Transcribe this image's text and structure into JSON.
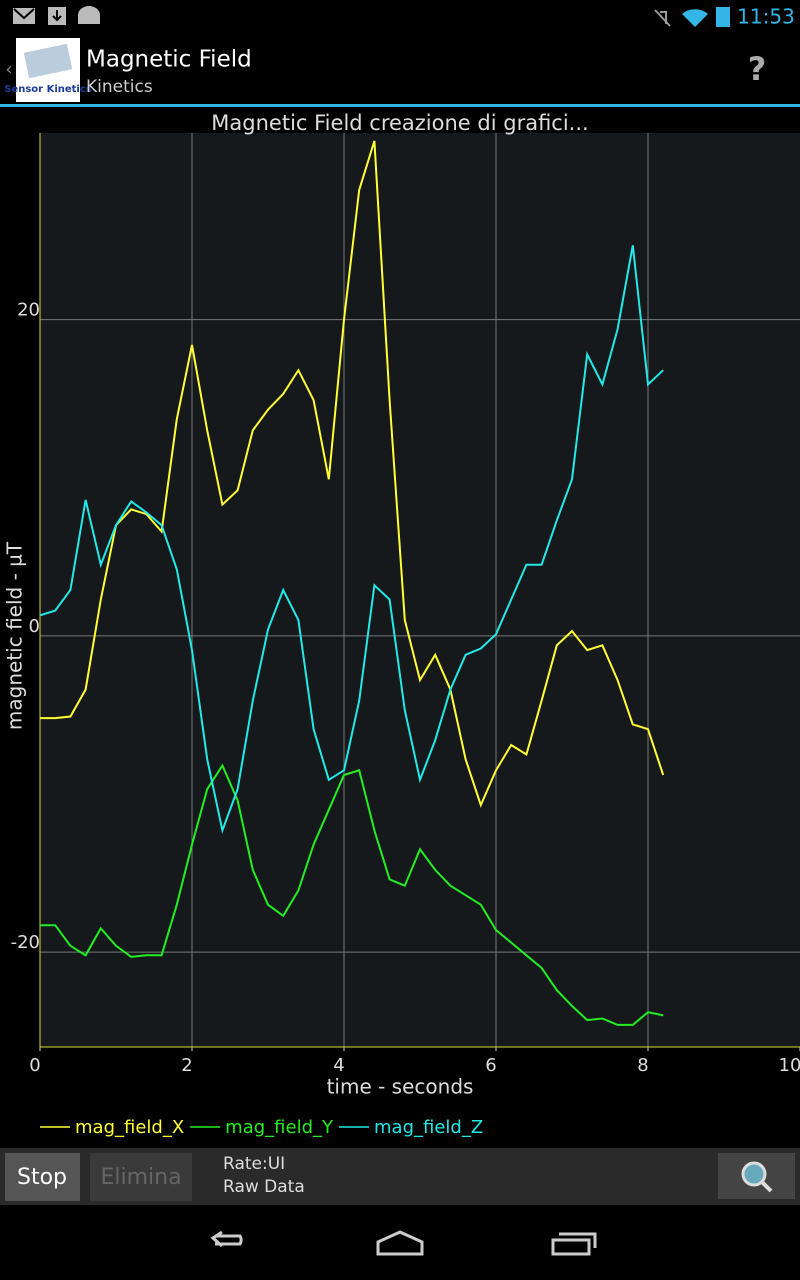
{
  "status_bar": {
    "time": "11:53"
  },
  "app_bar": {
    "icon_label": "Sensor Kinetics",
    "title": "Magnetic Field",
    "subtitle": "Kinetics",
    "help": "?"
  },
  "chart_data": {
    "type": "line",
    "title": "Magnetic Field creazione di grafici...",
    "x_label": "time - seconds",
    "y_label": "magnetic field - µT",
    "x": [
      0,
      0.2,
      0.4,
      0.6,
      0.8,
      1.0,
      1.2,
      1.4,
      1.6,
      1.8,
      2.0,
      2.2,
      2.4,
      2.6,
      2.8,
      3.0,
      3.2,
      3.4,
      3.6,
      3.8,
      4.0,
      4.2,
      4.4,
      4.6,
      4.8,
      5.0,
      5.2,
      5.4,
      5.6,
      5.8,
      6.0,
      6.2,
      6.4,
      6.6,
      6.8,
      7.0,
      7.2,
      7.4,
      7.6,
      7.8,
      8.0,
      8.2
    ],
    "series": [
      {
        "name": "mag_field_X",
        "color": "#ffff33",
        "values": [
          -5.2,
          -5.2,
          -5.1,
          -3.4,
          2.3,
          7.0,
          8.0,
          7.7,
          6.6,
          13.7,
          18.4,
          13.0,
          8.3,
          9.2,
          13.0,
          14.3,
          15.3,
          16.8,
          14.9,
          9.9,
          20.0,
          28.2,
          31.3,
          14.9,
          1.0,
          -2.8,
          -1.2,
          -3.4,
          -7.8,
          -10.7,
          -8.5,
          -6.9,
          -7.5,
          -4.1,
          -0.6,
          0.3,
          -0.9,
          -0.6,
          -2.8,
          -5.6,
          -5.9,
          -8.8
        ]
      },
      {
        "name": "mag_field_Y",
        "color": "#22ee22",
        "values": [
          -18.3,
          -18.3,
          -19.6,
          -20.2,
          -18.5,
          -19.6,
          -20.3,
          -20.2,
          -20.2,
          -17.0,
          -13.2,
          -9.7,
          -8.2,
          -10.4,
          -14.8,
          -17.0,
          -17.7,
          -16.1,
          -13.2,
          -11.0,
          -8.8,
          -8.5,
          -12.3,
          -15.4,
          -15.8,
          -13.5,
          -14.8,
          -15.8,
          -16.4,
          -17.0,
          -18.6,
          -19.4,
          -20.2,
          -21.0,
          -22.4,
          -23.4,
          -24.3,
          -24.2,
          -24.6,
          -24.6,
          -23.8,
          -24.0
        ]
      },
      {
        "name": "mag_field_Z",
        "color": "#22e8e8",
        "values": [
          1.3,
          1.6,
          2.9,
          8.6,
          4.5,
          7.0,
          8.5,
          7.8,
          7.0,
          4.2,
          -0.9,
          -7.8,
          -12.3,
          -9.7,
          -4.1,
          0.4,
          2.9,
          1.0,
          -5.9,
          -9.1,
          -8.5,
          -4.1,
          3.2,
          2.3,
          -4.7,
          -9.1,
          -6.6,
          -3.4,
          -1.2,
          -0.8,
          0.1,
          2.3,
          4.5,
          4.5,
          7.3,
          9.9,
          17.8,
          15.9,
          19.4,
          24.7,
          15.9,
          16.8
        ]
      }
    ],
    "xlim": [
      0,
      10
    ],
    "xticks": [
      0,
      2,
      4,
      6,
      8,
      10
    ],
    "ylim": [
      -26,
      31.8
    ],
    "yticks": [
      -20,
      0,
      20
    ],
    "grid": true
  },
  "toolbar": {
    "stop": "Stop",
    "delete": "Elimina",
    "rate": "Rate:UI",
    "mode": "Raw Data"
  }
}
